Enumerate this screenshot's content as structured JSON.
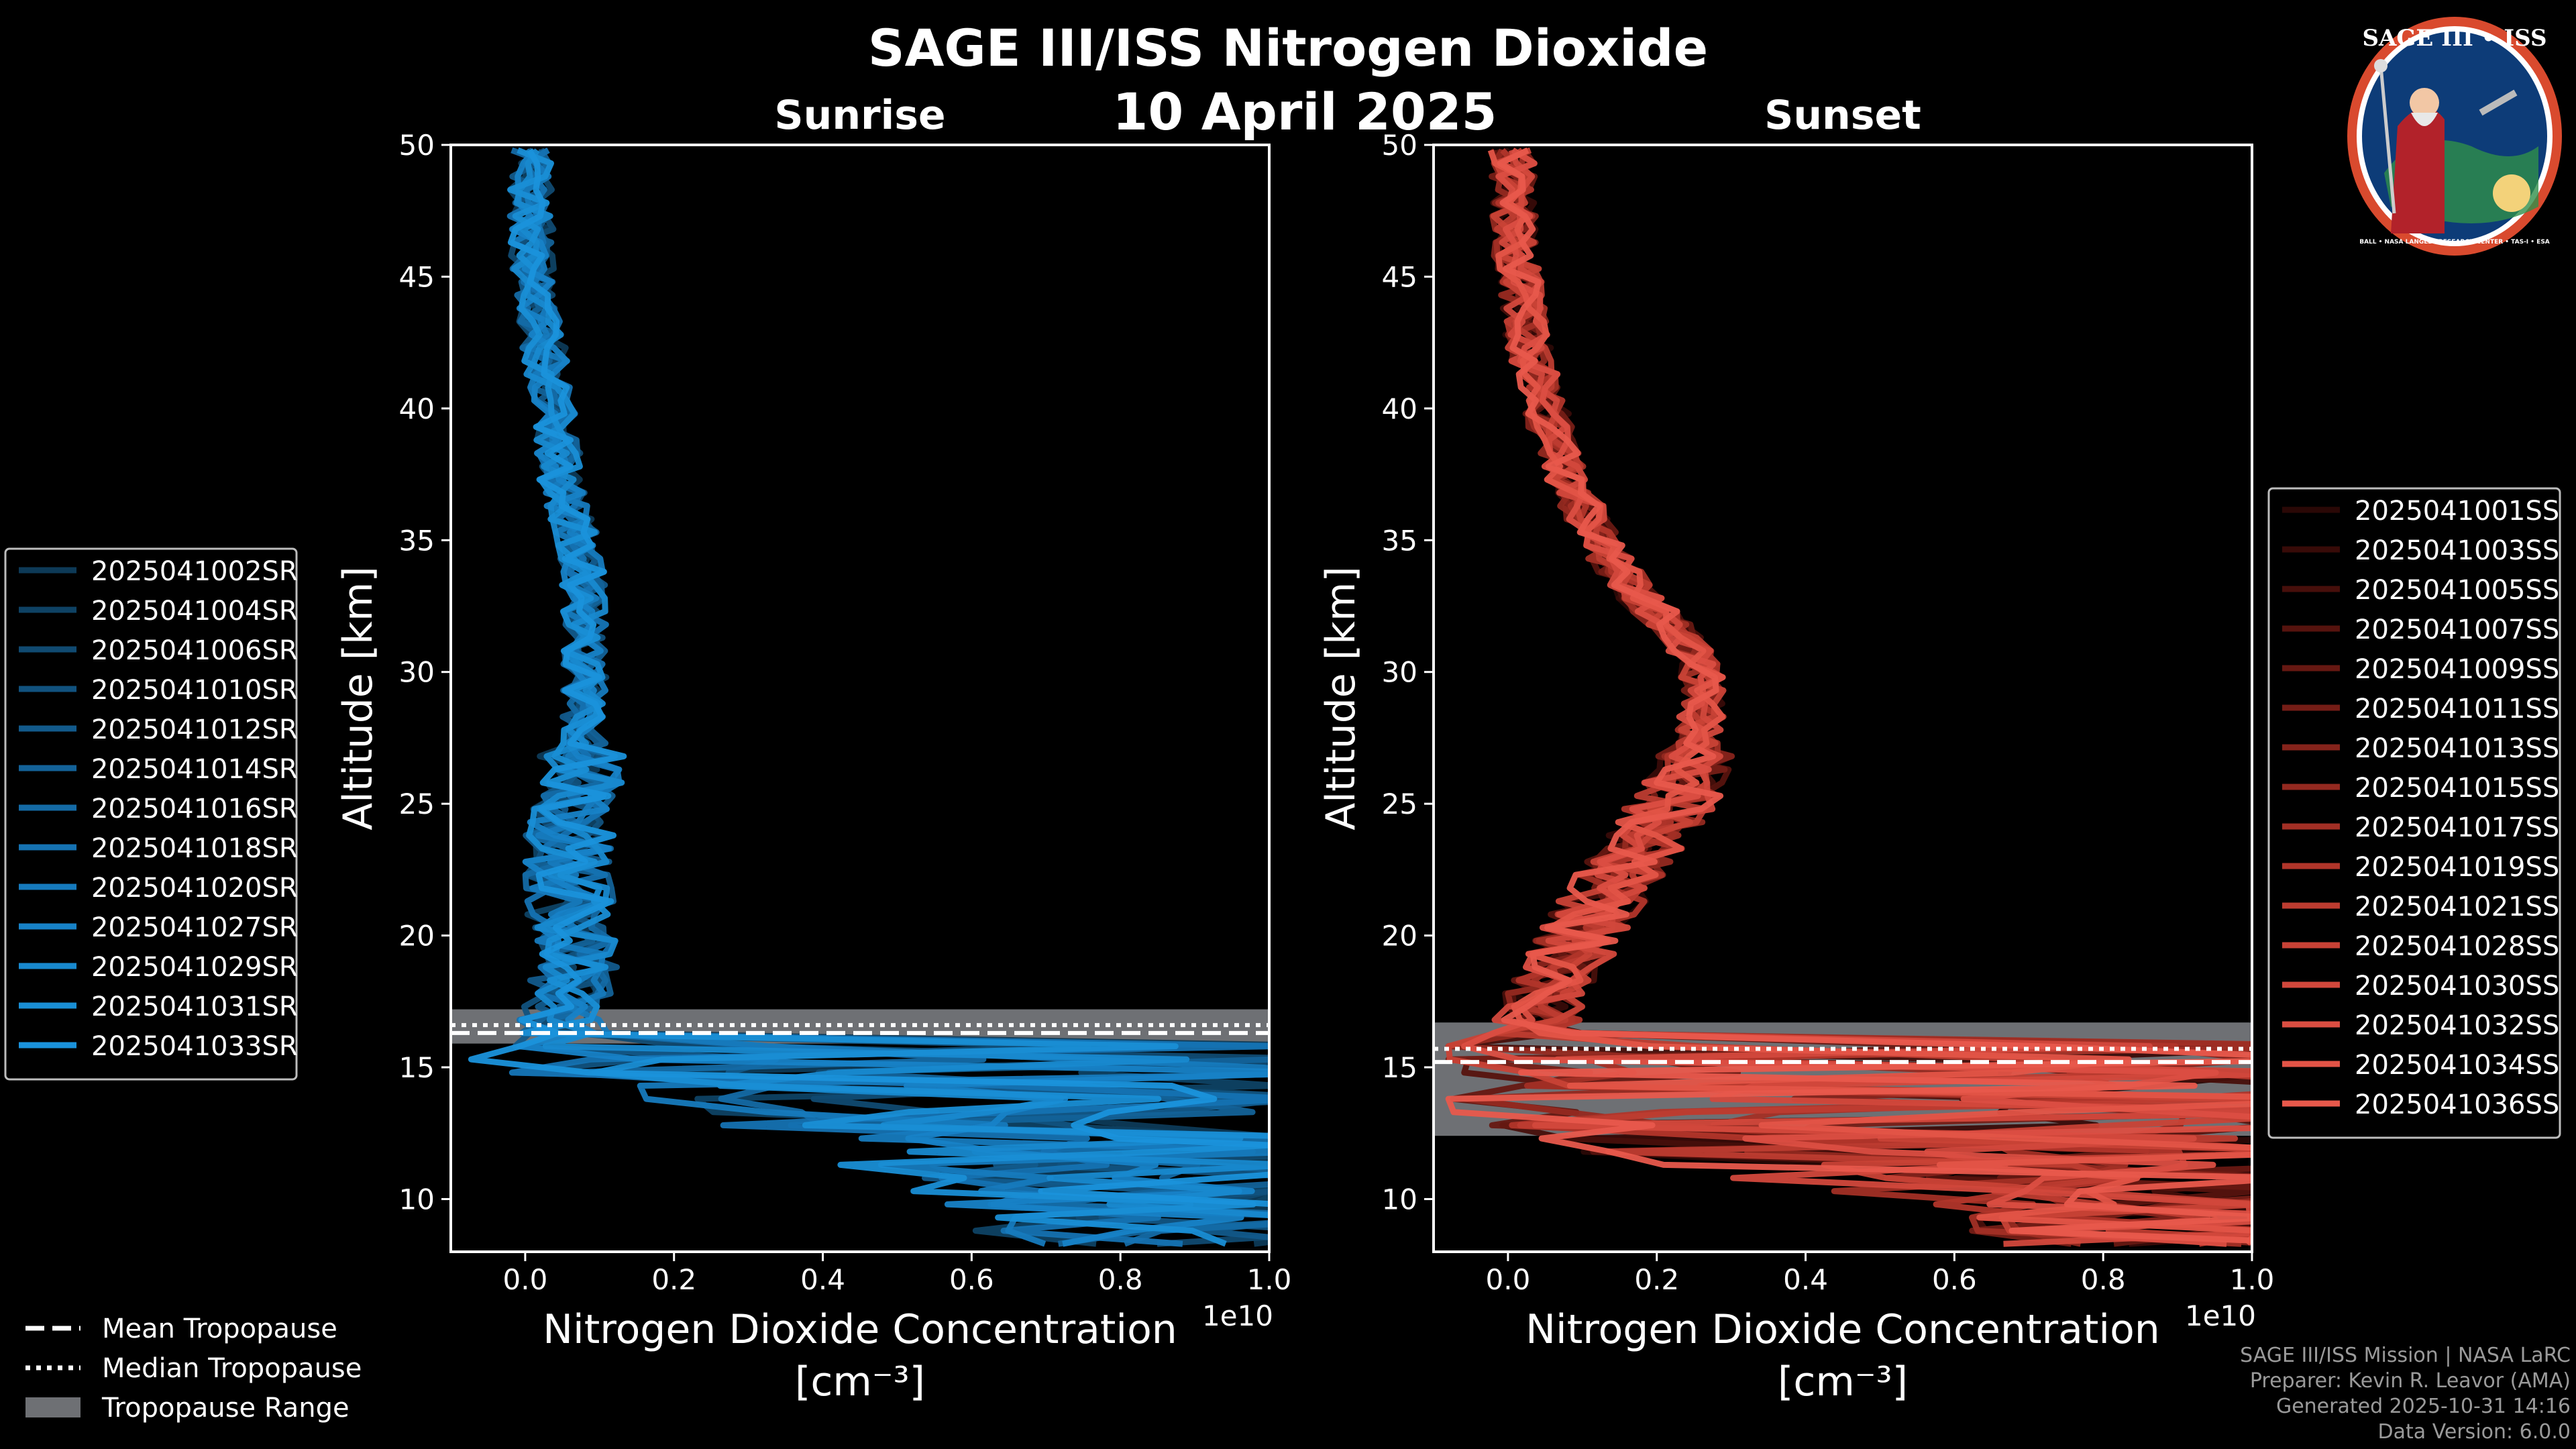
{
  "title": "SAGE III/ISS Nitrogen Dioxide",
  "date": "10 April 2025",
  "logo": {
    "text": "SAGE III • ISS",
    "ring_text": "BALL • NASA LANGLEY RESEARCH CENTER • TAS-I • ESA"
  },
  "footer": {
    "mission": "SAGE III/ISS Mission | NASA LaRC",
    "preparer": "Preparer: Kevin R. Leavor (AMA)",
    "generated": "Generated 2025-10-31 14:16",
    "version": "Data Version: 6.0.0"
  },
  "global_legend": [
    {
      "label": "Mean Tropopause",
      "style": "dashed"
    },
    {
      "label": "Median Tropopause",
      "style": "dotted"
    },
    {
      "label": "Tropopause Range",
      "style": "patch"
    }
  ],
  "chart_data": [
    {
      "type": "line",
      "title": "Sunrise",
      "xlabel": "Nitrogen Dioxide Concentration",
      "xunit": "[cm⁻³]",
      "ylabel": "Altitude [km]",
      "xlim": [
        -0.1,
        1.0
      ],
      "ylim": [
        8,
        50
      ],
      "x_multiplier": "1e10",
      "xticks": [
        "0.0",
        "0.2",
        "0.4",
        "0.6",
        "0.8",
        "1.0"
      ],
      "yticks": [
        "10",
        "15",
        "20",
        "25",
        "30",
        "35",
        "40",
        "45",
        "50"
      ],
      "color": "#1a8fd6",
      "tropopause": {
        "mean": 16.3,
        "median": 16.6,
        "range": [
          15.9,
          17.2
        ]
      },
      "profile": {
        "alt": [
          8.5,
          10,
          12,
          14,
          15,
          16,
          17,
          18,
          19,
          20,
          21,
          22,
          23,
          24,
          25,
          27,
          29,
          31,
          33,
          35,
          37,
          40,
          43,
          46,
          50
        ],
        "mean": [
          0.9,
          0.8,
          0.6,
          0.35,
          0.15,
          0.06,
          0.04,
          0.06,
          0.07,
          0.07,
          0.06,
          0.06,
          0.06,
          0.06,
          0.07,
          0.08,
          0.08,
          0.08,
          0.08,
          0.07,
          0.05,
          0.04,
          0.02,
          0.01,
          0.005
        ]
      },
      "series": [
        {
          "name": "2025041002SR",
          "color": "#0d3a57"
        },
        {
          "name": "2025041004SR",
          "color": "#0e4264"
        },
        {
          "name": "2025041006SR",
          "color": "#104a71"
        },
        {
          "name": "2025041010SR",
          "color": "#11527e"
        },
        {
          "name": "2025041012SR",
          "color": "#125a8b"
        },
        {
          "name": "2025041014SR",
          "color": "#136298"
        },
        {
          "name": "2025041016SR",
          "color": "#146aa5"
        },
        {
          "name": "2025041018SR",
          "color": "#1572b2"
        },
        {
          "name": "2025041020SR",
          "color": "#167abd"
        },
        {
          "name": "2025041027SR",
          "color": "#1782c7"
        },
        {
          "name": "2025041029SR",
          "color": "#1889cf"
        },
        {
          "name": "2025041031SR",
          "color": "#198ed5"
        },
        {
          "name": "2025041033SR",
          "color": "#1a92db"
        }
      ]
    },
    {
      "type": "line",
      "title": "Sunset",
      "xlabel": "Nitrogen Dioxide Concentration",
      "xunit": "[cm⁻³]",
      "ylabel": "Altitude [km]",
      "xlim": [
        -0.1,
        1.0
      ],
      "ylim": [
        8,
        50
      ],
      "x_multiplier": "1e10",
      "xticks": [
        "0.0",
        "0.2",
        "0.4",
        "0.6",
        "0.8",
        "1.0"
      ],
      "yticks": [
        "10",
        "15",
        "20",
        "25",
        "30",
        "35",
        "40",
        "45",
        "50"
      ],
      "color": "#e8584a",
      "tropopause": {
        "mean": 15.2,
        "median": 15.7,
        "range": [
          12.4,
          16.7
        ]
      },
      "profile": {
        "alt": [
          8.5,
          10,
          11,
          12,
          13,
          14,
          15,
          16,
          17,
          18,
          19,
          20,
          21,
          22,
          23,
          24,
          25,
          26,
          27,
          28,
          29,
          30,
          31,
          32,
          33,
          35,
          38,
          42,
          46,
          50
        ],
        "mean": [
          0.9,
          0.7,
          0.5,
          0.3,
          0.2,
          0.12,
          0.06,
          0.04,
          0.04,
          0.06,
          0.08,
          0.1,
          0.12,
          0.14,
          0.17,
          0.2,
          0.22,
          0.24,
          0.25,
          0.26,
          0.26,
          0.26,
          0.24,
          0.21,
          0.17,
          0.12,
          0.07,
          0.03,
          0.01,
          0.005
        ]
      },
      "series": [
        {
          "name": "2025041001SS",
          "color": "#2a0806"
        },
        {
          "name": "2025041003SS",
          "color": "#380b08"
        },
        {
          "name": "2025041005SS",
          "color": "#470f0b"
        },
        {
          "name": "2025041007SS",
          "color": "#56130e"
        },
        {
          "name": "2025041009SS",
          "color": "#661812"
        },
        {
          "name": "2025041011SS",
          "color": "#751d16"
        },
        {
          "name": "2025041013SS",
          "color": "#85231b"
        },
        {
          "name": "2025041015SS",
          "color": "#942920"
        },
        {
          "name": "2025041017SS",
          "color": "#a22f25"
        },
        {
          "name": "2025041019SS",
          "color": "#b1352a"
        },
        {
          "name": "2025041021SS",
          "color": "#bd3c30"
        },
        {
          "name": "2025041028SS",
          "color": "#c84236"
        },
        {
          "name": "2025041030SS",
          "color": "#d2483c"
        },
        {
          "name": "2025041032SS",
          "color": "#db4e42"
        },
        {
          "name": "2025041034SS",
          "color": "#e35447"
        },
        {
          "name": "2025041036SS",
          "color": "#e8594c"
        }
      ]
    }
  ]
}
